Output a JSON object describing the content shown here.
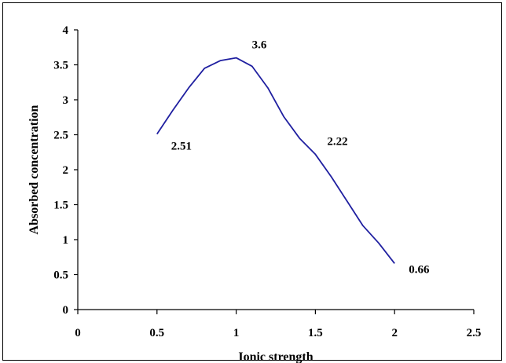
{
  "chart_data": {
    "type": "line",
    "title": "",
    "xlabel": "Ionic strength",
    "ylabel": "Absorbed concentration",
    "xlim": [
      0,
      2.5
    ],
    "ylim": [
      0,
      4
    ],
    "xticks": [
      0,
      0.5,
      1,
      1.5,
      2,
      2.5
    ],
    "yticks": [
      0,
      0.5,
      1,
      1.5,
      2,
      2.5,
      3,
      3.5,
      4
    ],
    "xtick_labels": [
      "0",
      "0.5",
      "1",
      "1.5",
      "2",
      "2.5"
    ],
    "ytick_labels": [
      "0",
      "0.5",
      "1",
      "1.5",
      "2",
      "2.5",
      "3",
      "3.5",
      "4"
    ],
    "grid": false,
    "legend": "none",
    "series": [
      {
        "color": "#1f1fa0",
        "x": [
          0.5,
          0.6,
          0.7,
          0.8,
          0.9,
          1.0,
          1.1,
          1.2,
          1.3,
          1.4,
          1.5,
          1.6,
          1.7,
          1.8,
          1.9,
          2.0
        ],
        "y": [
          2.51,
          2.85,
          3.17,
          3.45,
          3.56,
          3.6,
          3.48,
          3.17,
          2.76,
          2.45,
          2.22,
          1.9,
          1.55,
          1.2,
          0.95,
          0.66
        ]
      }
    ],
    "data_labels": [
      {
        "x": 0.5,
        "y": 2.51,
        "text": "2.51"
      },
      {
        "x": 1.0,
        "y": 3.6,
        "text": "3.6"
      },
      {
        "x": 1.5,
        "y": 2.22,
        "text": "2.22"
      },
      {
        "x": 2.0,
        "y": 0.66,
        "text": "0.66"
      }
    ]
  }
}
